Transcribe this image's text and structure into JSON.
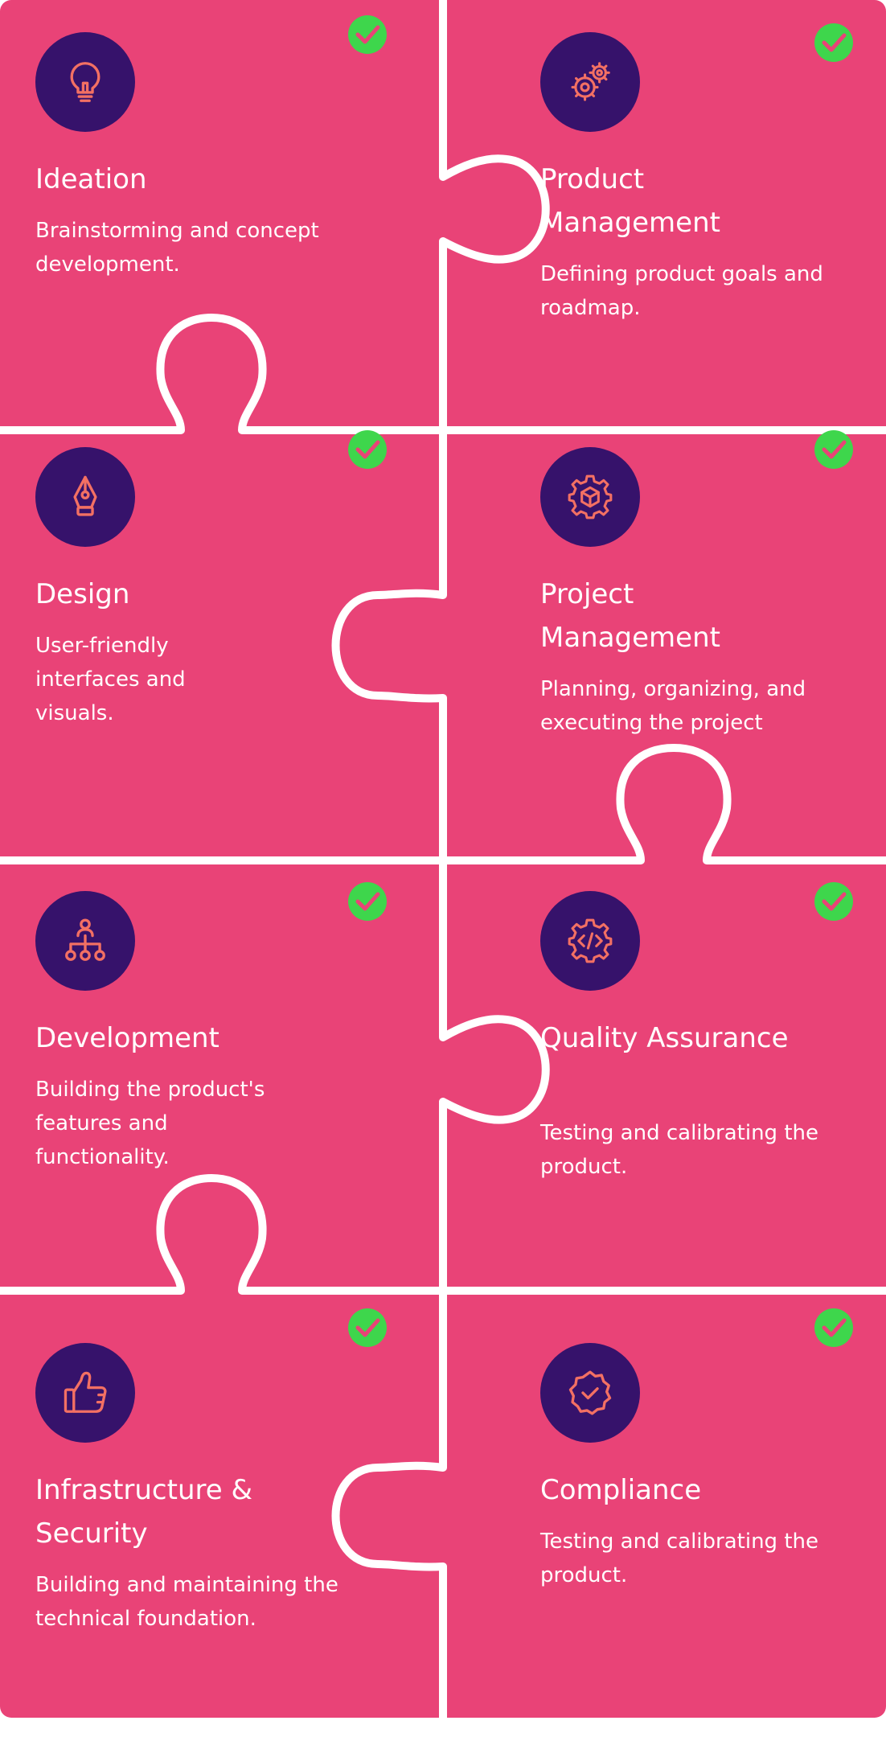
{
  "colors": {
    "tile": "#e94377",
    "seam": "#ffffff",
    "icon_bg": "#36126b",
    "icon_stroke": "#f37063",
    "check": "#3ed64c"
  },
  "tiles": [
    {
      "title": "Ideation",
      "desc": "Brainstorming and concept development.",
      "icon": "lightbulb-icon"
    },
    {
      "title": "Product Management",
      "desc": "Defining product goals and roadmap.",
      "icon": "gears-icon"
    },
    {
      "title": "Design",
      "desc": "User-friendly interfaces and visuals.",
      "icon": "pen-nib-icon"
    },
    {
      "title": "Project Management",
      "desc": "Planning, organizing, and executing the project",
      "icon": "gear-cube-icon"
    },
    {
      "title": "Development",
      "desc": "Building the product's features and functionality.",
      "icon": "hierarchy-icon"
    },
    {
      "title": "Quality Assurance",
      "desc": "Testing and calibrating the product.",
      "icon": "gear-code-icon"
    },
    {
      "title": "Infrastructure & Security",
      "desc": "Building and maintaining the technical foundation.",
      "icon": "thumbs-up-icon"
    },
    {
      "title": "Compliance",
      "desc": "Testing and calibrating the product.",
      "icon": "badge-check-icon"
    }
  ]
}
